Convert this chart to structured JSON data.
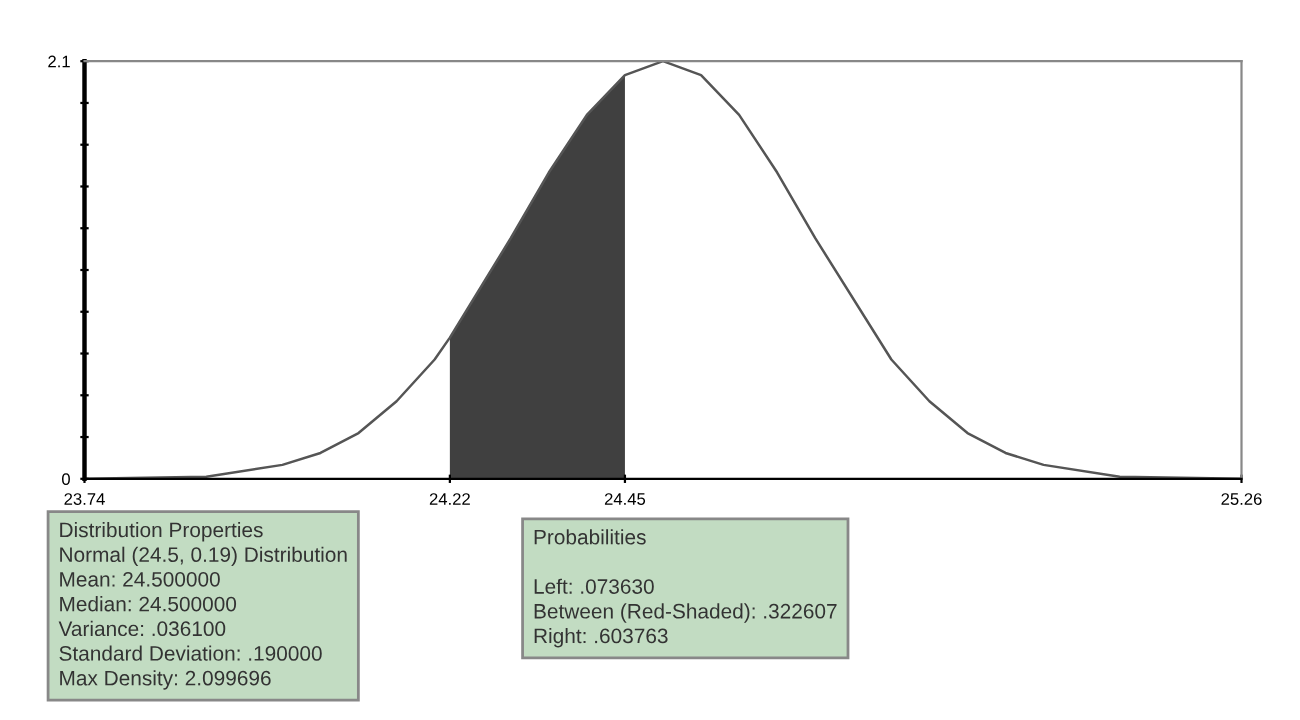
{
  "chart_data": {
    "type": "line",
    "series": [
      {
        "color": "#555555",
        "x": [
          23.74,
          23.9,
          24.0,
          24.05,
          24.1,
          24.15,
          24.2,
          24.22,
          24.3,
          24.35,
          24.4,
          24.45,
          24.5,
          24.55,
          24.6,
          24.65,
          24.7,
          24.8,
          24.85,
          24.9,
          24.95,
          25.0,
          25.1,
          25.26
        ],
        "values": [
          0.0,
          0.01,
          0.07,
          0.13,
          0.23,
          0.39,
          0.6,
          0.71,
          1.21,
          1.54,
          1.83,
          2.03,
          2.1,
          2.03,
          1.83,
          1.54,
          1.21,
          0.6,
          0.39,
          0.23,
          0.13,
          0.07,
          0.01,
          0.0
        ]
      },
      {
        "type": "area",
        "color": "#404040",
        "x": [
          24.22,
          24.3,
          24.35,
          24.4,
          24.45
        ],
        "values": [
          0.71,
          1.21,
          1.54,
          1.83,
          2.03
        ]
      }
    ],
    "xlim": [
      23.74,
      25.26
    ],
    "ylim": [
      0,
      2.1
    ],
    "xticks": [
      23.74,
      24.22,
      24.45,
      25.26
    ],
    "yticks": [
      0,
      {
        "value": 0.21,
        "label": null
      },
      {
        "value": 0.42,
        "label": null
      },
      {
        "value": 0.63,
        "label": null
      },
      {
        "value": 0.84,
        "label": null
      },
      {
        "value": 1.05,
        "label": null
      },
      {
        "value": 1.26,
        "label": null
      },
      {
        "value": 1.47,
        "label": null
      },
      {
        "value": 1.68,
        "label": null
      },
      {
        "value": 1.89,
        "label": null
      },
      2.1
    ],
    "grid": false,
    "legend": false,
    "annotations": [
      "Distribution Properties\nNormal (24.5, 0.19) Distribution\nMean: 24.500000\nMedian: 24.500000\nVariance: .036100\nStandard Deviation: .190000\nMax Density: 2.099696",
      "Probabilities\n\nLeft: .073630\nBetween (Red-Shaded): .322607\nRight: .603763"
    ]
  }
}
